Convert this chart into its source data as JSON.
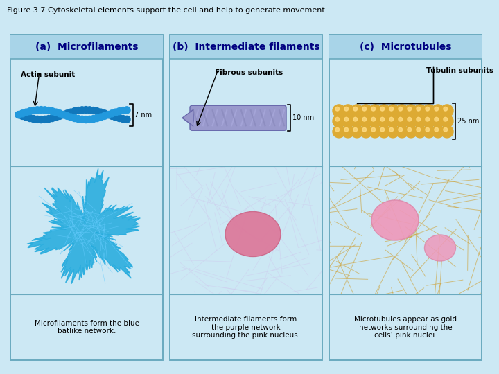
{
  "figure_title": "Figure 3.7 Cytoskeletal elements support the cell and help to generate movement.",
  "background_color": "#cce8f4",
  "panel_bg_color": "#cce8f4",
  "header_bg_color": "#a8d4e8",
  "border_color": "#6aaabf",
  "panels": [
    {
      "label": "(a)  Microfilaments",
      "illustration_label": "Actin subunit",
      "size_label": "7 nm",
      "micro_caption": "Microfilaments form the blue\nbatlike network.",
      "illus_color": "#3399cc",
      "micro_photo_color": "#000000",
      "micro_cell_color": "#33bbee"
    },
    {
      "label": "(b)  Intermediate filaments",
      "illustration_label": "Fibrous subunits",
      "size_label": "10 nm",
      "micro_caption": "Intermediate filaments form\nthe purple network\nsurrounding the pink nucleus.",
      "illus_color": "#8888cc",
      "micro_photo_color": "#888888",
      "micro_cell_color": "#cc88aa"
    },
    {
      "label": "(c)  Microtubules",
      "illustration_label": "Tubulin subunits",
      "size_label": "25 nm",
      "micro_caption": "Microtubules appear as gold\nnetworks surrounding the\ncells’ pink nuclei.",
      "illus_color": "#ddaa44",
      "micro_photo_color": "#886600",
      "micro_cell_color": "#cc9900"
    }
  ],
  "header_text_color": "#000080",
  "caption_text_color": "#000000",
  "annot_text_color": "#000000",
  "title_fontsize": 8,
  "header_fontsize": 10,
  "annot_fontsize": 8,
  "caption_fontsize": 7.5
}
